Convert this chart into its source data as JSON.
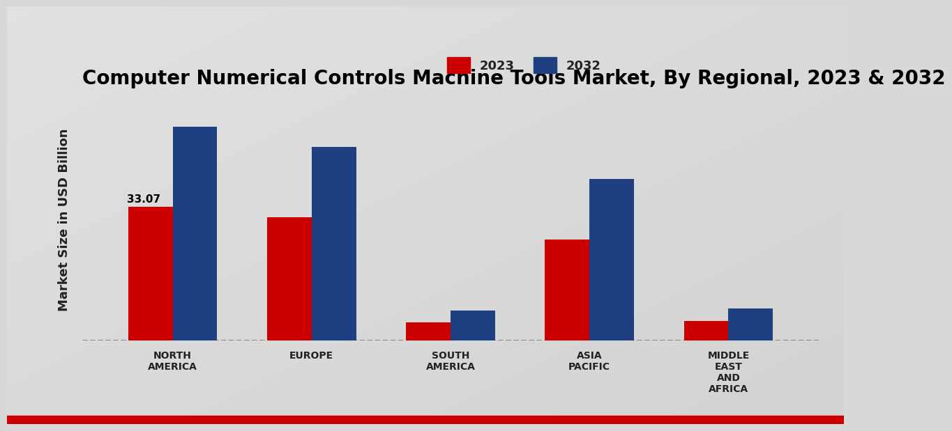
{
  "title": "Computer Numerical Controls Machine Tools Market, By Regional, 2023 & 2032",
  "categories": [
    "NORTH\nAMERICA",
    "EUROPE",
    "SOUTH\nAMERICA",
    "ASIA\nPACIFIC",
    "MIDDLE\nEAST\nAND\nAFRICA"
  ],
  "values_2023": [
    33.07,
    30.5,
    4.5,
    25.0,
    4.8
  ],
  "values_2032": [
    53.0,
    48.0,
    7.5,
    40.0,
    8.0
  ],
  "color_2023": "#cc0000",
  "color_2032": "#1e4080",
  "ylabel": "Market Size in USD Billion",
  "annotation_value": "33.07",
  "legend_labels": [
    "2023",
    "2032"
  ],
  "bar_width": 0.32,
  "ylim": [
    0,
    60
  ],
  "bottom_bar_color": "#cc0000",
  "gradient_start": "#f0f0f0",
  "gradient_end": "#c8c8c8",
  "title_fontsize": 20,
  "ylabel_fontsize": 13
}
